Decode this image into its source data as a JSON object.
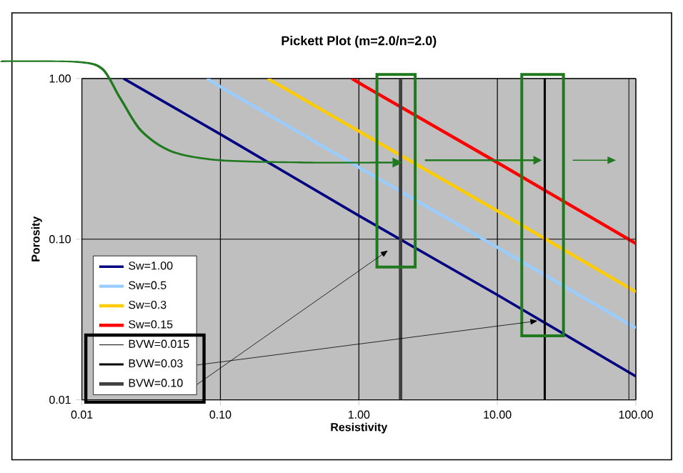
{
  "chart_data": {
    "type": "line",
    "title": "Pickett Plot (m=2.0/n=2.0)",
    "xlabel": "Resistivity",
    "ylabel": "Porosity",
    "log": "xy",
    "grid": true,
    "legend": "bottom left",
    "xlim": [
      0.01,
      100
    ],
    "ylim": [
      0.01,
      1
    ],
    "xticks": [
      0.01,
      {
        "value": 0.1,
        "label": "0.10"
      },
      {
        "value": 1,
        "label": "1.00"
      },
      {
        "value": 10,
        "label": "10.00"
      },
      {
        "value": 100,
        "label": "100.00"
      }
    ],
    "yticks": [
      0.01,
      {
        "value": 0.1,
        "label": "0.10"
      },
      {
        "value": 1,
        "label": "1.00"
      }
    ],
    "series": [
      {
        "name": "Sw=1.00",
        "color": "#000080",
        "x": [
          0.02,
          0.1,
          1,
          10,
          100
        ],
        "values": [
          1,
          0.45,
          0.14,
          0.045,
          0.014
        ]
      },
      {
        "name": "Sw=0.5",
        "color": "#99ccff",
        "x": [
          0.08,
          0.1,
          1,
          10,
          100
        ],
        "values": [
          1,
          0.89,
          0.28,
          0.089,
          0.028
        ]
      },
      {
        "name": "Sw=0.3",
        "color": "#ffcc00",
        "x": [
          0.22,
          1,
          10,
          100
        ],
        "values": [
          1,
          0.47,
          0.15,
          0.047
        ]
      },
      {
        "name": "Sw=0.15",
        "color": "#ff0000",
        "x": [
          0.89,
          1,
          10,
          100
        ],
        "values": [
          1,
          0.94,
          0.3,
          0.094
        ]
      },
      {
        "name": "BVW=0.015",
        "color": "#000000",
        "x": [
          89,
          89
        ],
        "values": [
          0.01,
          1
        ]
      },
      {
        "name": "BVW=0.03",
        "color": "#000000",
        "x": [
          22,
          22
        ],
        "values": [
          0.01,
          1
        ]
      },
      {
        "name": "BVW=0.10",
        "color": "#404040",
        "x": [
          2,
          2
        ],
        "values": [
          0.01,
          1
        ]
      }
    ]
  }
}
